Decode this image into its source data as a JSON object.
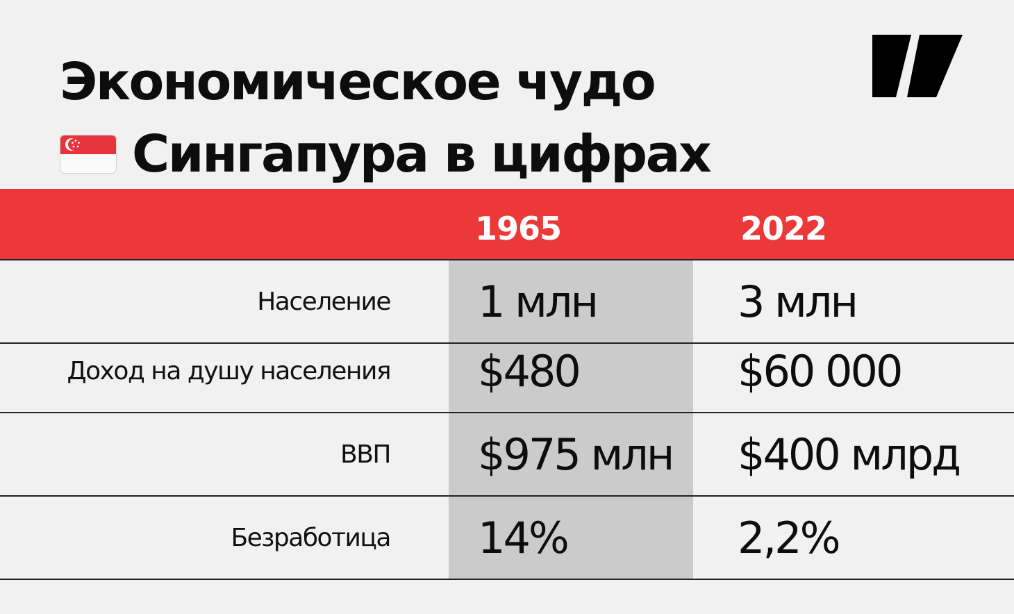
{
  "title": {
    "line1": "Экономическое чудо",
    "flag_emoji": "🇸🇬",
    "line2": "Сингапура в цифрах"
  },
  "colors": {
    "background": "#f1f1f1",
    "header_red": "#ec3838",
    "shaded_column": "#cbcbcb",
    "text": "#0d0d0d"
  },
  "logo": {
    "icon": "publisher-logo-icon"
  },
  "table": {
    "columns": [
      "1965",
      "2022"
    ],
    "rows": [
      {
        "label": "Население",
        "values": [
          "1 млн",
          "3 млн"
        ]
      },
      {
        "label": "Доход на душу населения",
        "values": [
          "$480",
          "$60 000"
        ]
      },
      {
        "label": "ВВП",
        "values": [
          "$975 млн",
          "$400 млрд"
        ]
      },
      {
        "label": "Безработица",
        "values": [
          "14%",
          "2,2%"
        ]
      }
    ]
  }
}
